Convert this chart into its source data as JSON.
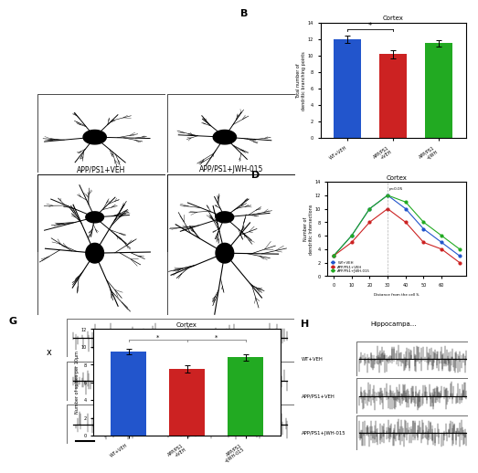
{
  "top_labels": [
    "APP/PS1+VEH",
    "APP/PS1+JWH-015"
  ],
  "panel_B": {
    "title": "Cortex",
    "ylabel": "Total number of\ndendritic branching points",
    "categories": [
      "WT+VEH",
      "APP/PS1+VEH",
      "APP/PS1+\nJWH-015"
    ],
    "values": [
      12.0,
      10.2,
      11.5
    ],
    "errors": [
      0.4,
      0.5,
      0.4
    ],
    "colors": [
      "#2255cc",
      "#cc2222",
      "#22aa22"
    ],
    "ylim": [
      0,
      14
    ],
    "yticks": [
      0,
      2,
      4,
      6,
      8,
      10,
      12,
      14
    ],
    "sig_text": "*"
  },
  "panel_D": {
    "title": "Cortex",
    "ylabel": "Number of\ndendritic Intersections",
    "xlabel": "Distance from the cell S.",
    "x": [
      0,
      10,
      20,
      30,
      40,
      50,
      60,
      70
    ],
    "blue": [
      3,
      6,
      10,
      12,
      10,
      7,
      5,
      3
    ],
    "red": [
      3,
      5,
      8,
      10,
      8,
      5,
      4,
      2
    ],
    "green": [
      3,
      6,
      10,
      12,
      11,
      8,
      6,
      4
    ],
    "ylim": [
      0,
      14
    ],
    "yticks": [
      0,
      2,
      4,
      6,
      8,
      10,
      12,
      14
    ],
    "xticks": [
      0,
      10,
      20,
      30,
      40,
      50,
      60
    ],
    "sig_text": "p<0.05",
    "sig_x": 30,
    "legend": [
      "WT+VEH",
      "APP/PS1+VEH",
      "APP/PS1+JWH-015"
    ],
    "legend_colors": [
      "#2255cc",
      "#cc2222",
      "#22aa22"
    ]
  },
  "panel_G": {
    "title": "Cortex",
    "ylabel": "Number of spines per 10μm",
    "categories": [
      "WT+VEH",
      "APP/PS1+VEH",
      "APP/PS1+JWH-015"
    ],
    "values": [
      9.5,
      7.5,
      8.8
    ],
    "errors": [
      0.3,
      0.4,
      0.35
    ],
    "colors": [
      "#2255cc",
      "#cc2222",
      "#22aa22"
    ],
    "ylim": [
      0,
      12
    ],
    "yticks": [
      0,
      2,
      4,
      6,
      8,
      10,
      12
    ]
  },
  "panel_H_labels": [
    "WT+VEH",
    "APP/PS1+VEH",
    "APP/PS1+JWH-015"
  ],
  "hippocampus_label": "Hippocampa...",
  "background_color": "#ffffff"
}
